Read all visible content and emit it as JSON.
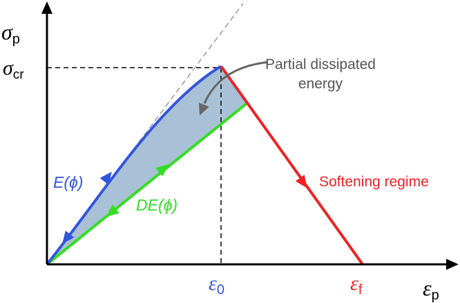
{
  "axes": {
    "y_label": {
      "symbol": "σ",
      "subscript": "p"
    },
    "x_label": {
      "symbol": "ε",
      "subscript": "p"
    }
  },
  "markers": {
    "sigma_cr": {
      "symbol": "σ",
      "subscript": "cr"
    },
    "epsilon_0": {
      "symbol": "ε",
      "subscript": "0"
    },
    "epsilon_f": {
      "symbol": "ε",
      "subscript": "f"
    }
  },
  "annotations": {
    "dissipated_energy": [
      "Partial dissipated",
      "energy"
    ],
    "loading": "E(ϕ)",
    "unloading": "DE(ϕ)",
    "softening": "Softening regime"
  }
}
